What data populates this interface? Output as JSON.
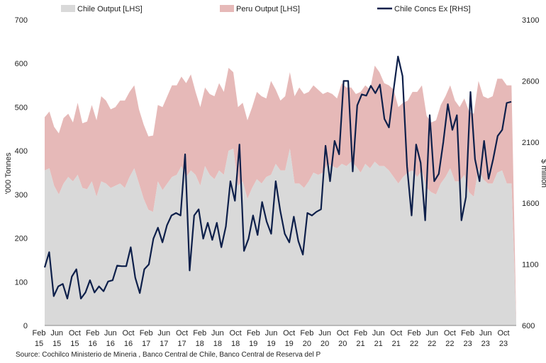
{
  "chart_data": {
    "type": "area",
    "title": "",
    "source": "Source: Cochilco Ministerio de Mineria , Banco Central de Chile, Banco Central de Reserva del P",
    "ylabel_left": "'000 Tonnes",
    "ylabel_right": "$ million",
    "ylim_left": [
      0,
      700
    ],
    "ylim_right": [
      600,
      3100
    ],
    "yticks_left": [
      "700",
      "600",
      "500",
      "400",
      "300",
      "200",
      "100",
      "0"
    ],
    "yticks_right": [
      "3100",
      "2600",
      "2100",
      "1600",
      "1100",
      "600"
    ],
    "xticks": [
      {
        "month": "Feb",
        "year": "15"
      },
      {
        "month": "Jun",
        "year": "15"
      },
      {
        "month": "Oct",
        "year": "15"
      },
      {
        "month": "Feb",
        "year": "16"
      },
      {
        "month": "Jun",
        "year": "16"
      },
      {
        "month": "Oct",
        "year": "16"
      },
      {
        "month": "Feb",
        "year": "17"
      },
      {
        "month": "Jun",
        "year": "17"
      },
      {
        "month": "Oct",
        "year": "17"
      },
      {
        "month": "Feb",
        "year": "18"
      },
      {
        "month": "Jun",
        "year": "18"
      },
      {
        "month": "Oct",
        "year": "18"
      },
      {
        "month": "Feb",
        "year": "19"
      },
      {
        "month": "Jun",
        "year": "19"
      },
      {
        "month": "Oct",
        "year": "19"
      },
      {
        "month": "Feb",
        "year": "20"
      },
      {
        "month": "Jun",
        "year": "20"
      },
      {
        "month": "Oct",
        "year": "20"
      },
      {
        "month": "Feb",
        "year": "21"
      },
      {
        "month": "Jun",
        "year": "21"
      },
      {
        "month": "Oct",
        "year": "21"
      },
      {
        "month": "Feb",
        "year": "22"
      },
      {
        "month": "Jun",
        "year": "22"
      },
      {
        "month": "Oct",
        "year": "22"
      },
      {
        "month": "Feb",
        "year": "23"
      },
      {
        "month": "Jun",
        "year": "23"
      },
      {
        "month": "Oct",
        "year": "23"
      }
    ],
    "x_start": "2015-01",
    "series": [
      {
        "name": "Chile Output [LHS]",
        "type": "area",
        "axis": "left",
        "color": "#d9d9d9",
        "values": [
          355,
          360,
          320,
          300,
          325,
          340,
          330,
          345,
          315,
          312,
          330,
          295,
          330,
          325,
          315,
          320,
          325,
          315,
          340,
          360,
          325,
          290,
          265,
          260,
          330,
          310,
          325,
          340,
          345,
          365,
          340,
          355,
          345,
          320,
          365,
          345,
          335,
          355,
          345,
          400,
          405,
          320,
          330,
          290,
          315,
          335,
          325,
          340,
          345,
          370,
          355,
          355,
          405,
          325,
          325,
          315,
          330,
          350,
          345,
          350,
          370,
          365,
          360,
          370,
          365,
          375,
          365,
          350,
          370,
          360,
          375,
          365,
          365,
          355,
          340,
          325,
          340,
          350,
          355,
          340,
          355,
          315,
          305,
          300,
          325,
          340,
          360,
          330,
          330,
          345,
          305,
          295,
          360,
          335,
          325,
          325,
          350,
          355,
          325,
          325,
          5
        ]
      },
      {
        "name": "Peru Output [LHS]",
        "type": "area",
        "axis": "left",
        "color": "#e6b9b8",
        "values": [
          122,
          130,
          135,
          140,
          150,
          145,
          135,
          165,
          148,
          155,
          175,
          175,
          195,
          190,
          180,
          180,
          190,
          200,
          195,
          190,
          170,
          170,
          168,
          175,
          175,
          190,
          200,
          210,
          205,
          205,
          215,
          220,
          190,
          180,
          180,
          185,
          190,
          200,
          190,
          190,
          175,
          180,
          180,
          180,
          185,
          200,
          200,
          180,
          215,
          170,
          160,
          170,
          175,
          200,
          220,
          215,
          205,
          200,
          195,
          180,
          165,
          165,
          160,
          185,
          180,
          170,
          165,
          185,
          180,
          180,
          220,
          215,
          190,
          195,
          200,
          175,
          170,
          165,
          180,
          195,
          195,
          165,
          160,
          170,
          180,
          185,
          190,
          185,
          170,
          175,
          185,
          190,
          200,
          190,
          195,
          200,
          215,
          210,
          225,
          225,
          10
        ]
      },
      {
        "name": "Chile Concs Ex [RHS]",
        "type": "line",
        "axis": "right",
        "color": "#0d1f4a",
        "values": [
          1075,
          1200,
          840,
          920,
          940,
          820,
          1000,
          1060,
          820,
          870,
          970,
          870,
          920,
          880,
          960,
          970,
          1090,
          1085,
          1085,
          1240,
          990,
          865,
          1060,
          1100,
          1310,
          1400,
          1280,
          1420,
          1500,
          1520,
          1500,
          2000,
          1050,
          1500,
          1550,
          1310,
          1440,
          1300,
          1440,
          1240,
          1410,
          1780,
          1620,
          2080,
          1210,
          1310,
          1500,
          1340,
          1610,
          1450,
          1350,
          1780,
          1540,
          1350,
          1280,
          1490,
          1290,
          1180,
          1520,
          1500,
          1530,
          1550,
          2070,
          1780,
          2110,
          2000,
          2600,
          2600,
          1860,
          2400,
          2490,
          2480,
          2560,
          2500,
          2570,
          2290,
          2220,
          2520,
          2800,
          2640,
          1900,
          1500,
          2080,
          1930,
          1460,
          2320,
          1780,
          1840,
          2100,
          2410,
          2200,
          2320,
          1460,
          1650,
          2510,
          1960,
          1780,
          2110,
          1800,
          1960,
          2150,
          2200,
          2420,
          2430
        ]
      }
    ]
  },
  "legend": {
    "items": [
      {
        "label": "Chile Output [LHS]",
        "swatch": "area",
        "color": "#d9d9d9"
      },
      {
        "label": "Peru Output [LHS]",
        "swatch": "area",
        "color": "#e6b9b8"
      },
      {
        "label": "Chile Concs Ex [RHS]",
        "swatch": "line",
        "color": "#0d1f4a"
      }
    ]
  }
}
